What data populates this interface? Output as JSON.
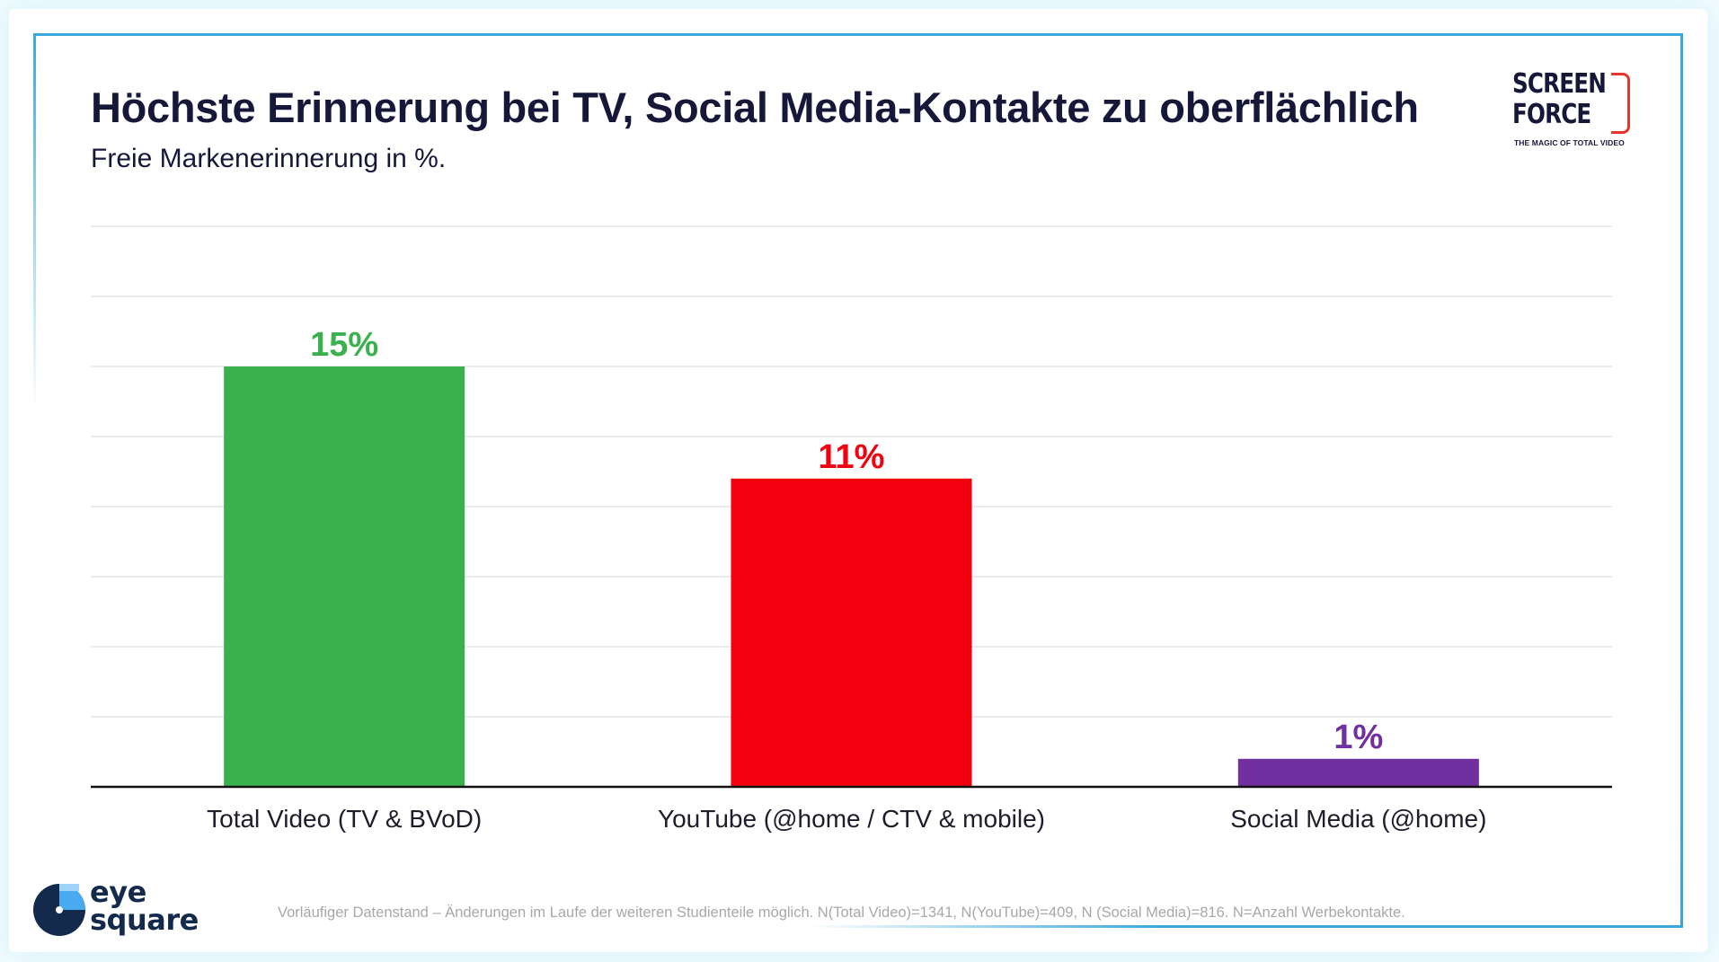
{
  "header": {
    "title": "Höchste Erinnerung bei TV, Social Media-Kontakte zu oberflächlich",
    "subtitle": "Freie Markenerinnerung in %."
  },
  "logos": {
    "screenforce": {
      "line1": "SCREEN",
      "line2": "FORCE",
      "tagline": "THE MAGIC OF TOTAL VIDEO",
      "accent": "#e3372b"
    },
    "eyesquare": {
      "line1": "eye",
      "line2": "square",
      "dark": "#132a4c",
      "light": "#4aaaf0"
    }
  },
  "footnote": "Vorläufiger Datenstand – Änderungen im Laufe der weiteren Studienteile möglich. N(Total Video)=1341, N(YouTube)=409, N (Social Media)=816. N=Anzahl Werbekontakte.",
  "chart_data": {
    "type": "bar",
    "title": "Höchste Erinnerung bei TV, Social Media-Kontakte zu oberflächlich",
    "subtitle": "Freie Markenerinnerung in %.",
    "xlabel": "",
    "ylabel": "",
    "categories": [
      "Total Video (TV & BVoD)",
      "YouTube (@home / CTV & mobile)",
      "Social Media (@home)"
    ],
    "values": [
      15,
      11,
      1
    ],
    "value_labels": [
      "15%",
      "11%",
      "1%"
    ],
    "colors": [
      "#3bb04f",
      "#f2000f",
      "#7030a0"
    ],
    "ylim": [
      0,
      20
    ],
    "gridline_step": 2.5,
    "grid": true,
    "y_tick_labels_visible": false,
    "legend": "none"
  }
}
